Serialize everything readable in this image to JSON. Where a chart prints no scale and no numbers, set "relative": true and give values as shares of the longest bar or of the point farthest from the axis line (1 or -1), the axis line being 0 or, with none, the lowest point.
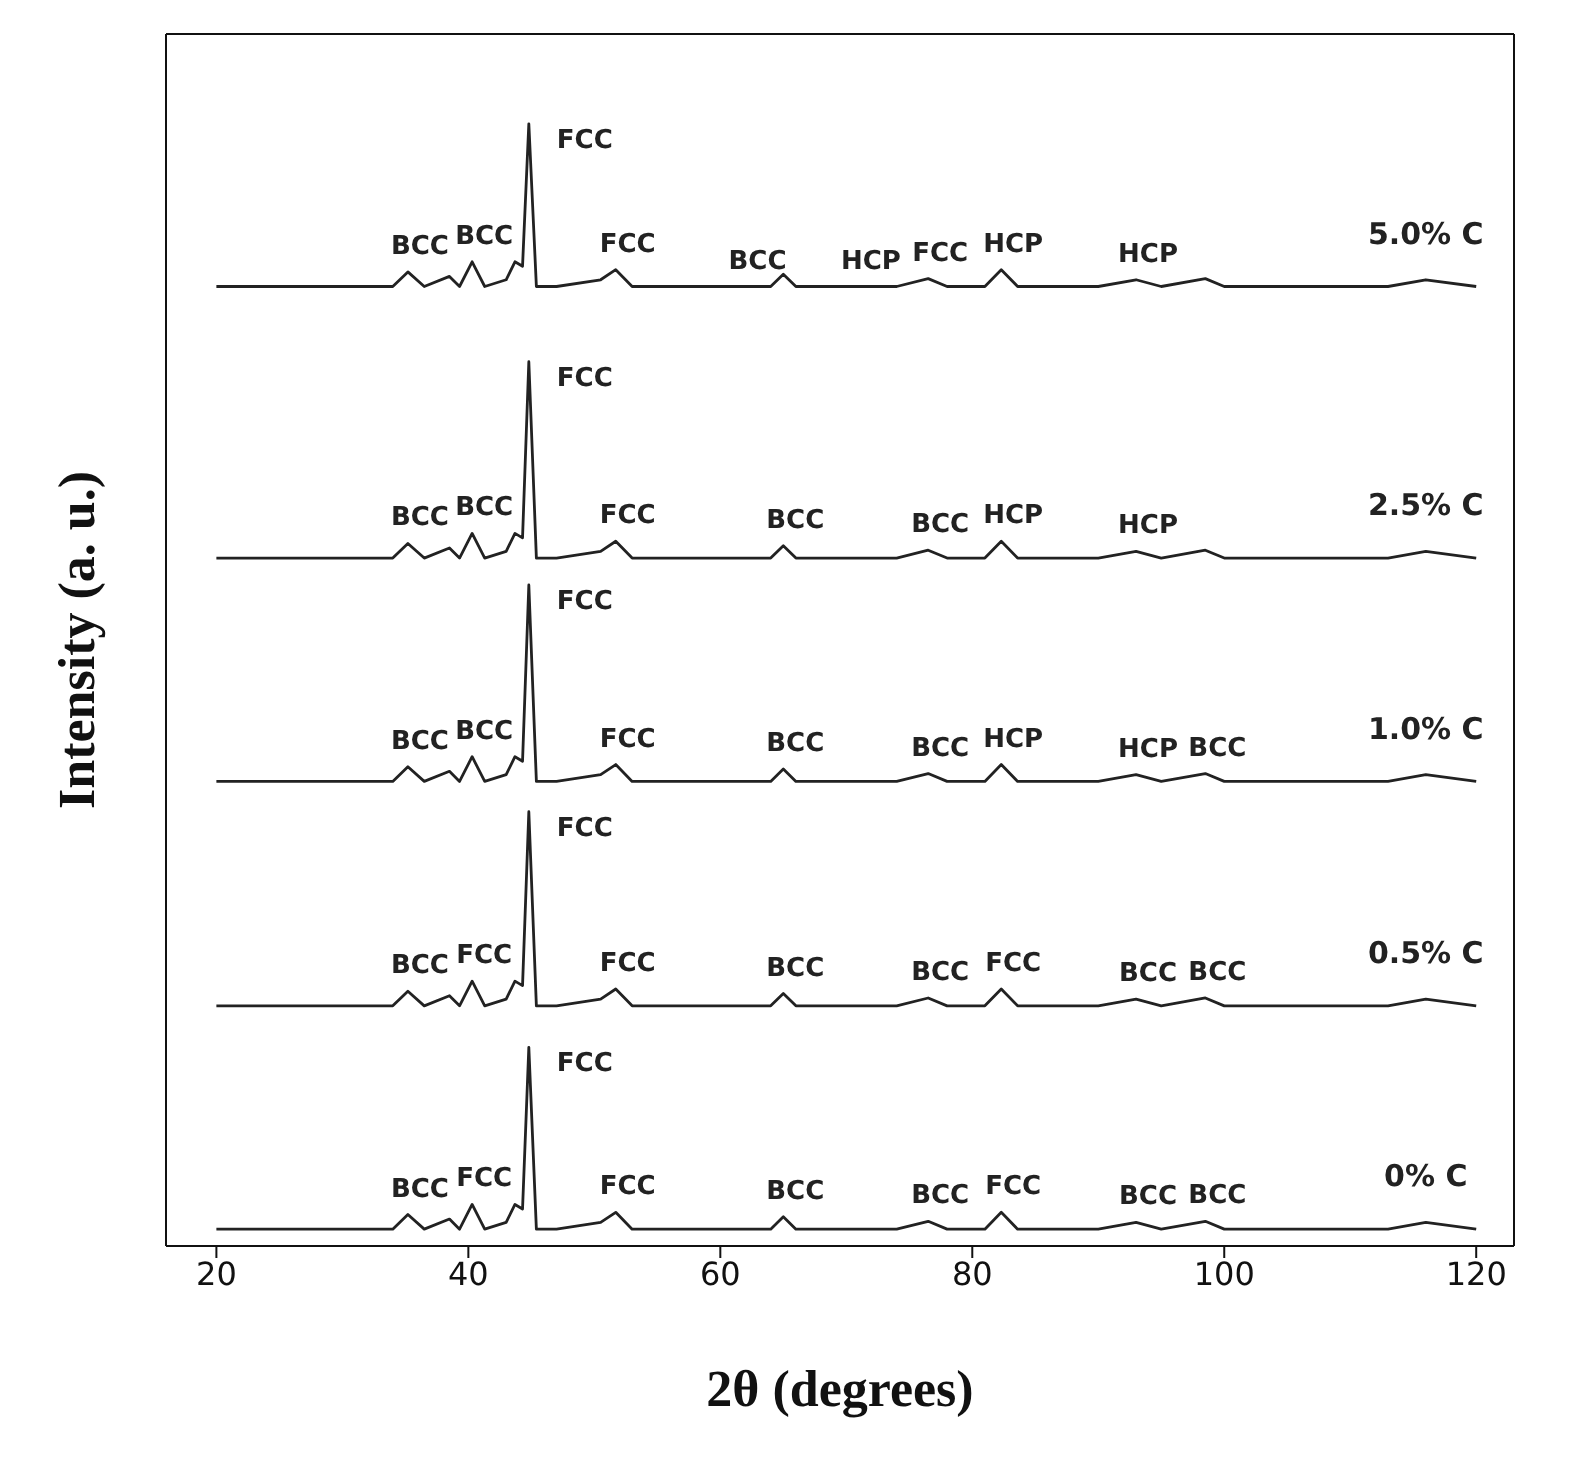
{
  "chart_data": {
    "type": "line",
    "relative": true,
    "xlabel": "2θ (degrees)",
    "ylabel": "Intensity (a. u.)",
    "xlim": [
      16,
      123
    ],
    "xticks": [
      20,
      40,
      60,
      80,
      100,
      120
    ],
    "grid": false,
    "legend": false,
    "marker": "none",
    "line_style": "solid",
    "x": [
      20,
      30,
      34,
      35.2,
      36.5,
      38.5,
      39.3,
      40.3,
      41.3,
      43,
      43.7,
      44.3,
      44.8,
      45.4,
      47,
      50.5,
      51.7,
      53,
      64,
      65,
      66,
      74,
      76.5,
      78,
      81,
      82.3,
      83.6,
      90,
      93,
      95,
      98.5,
      100,
      113,
      116,
      120
    ],
    "series": [
      {
        "name": "5.0% C",
        "color": "#222222",
        "values": [
          0.855,
          0.855,
          0.855,
          0.868,
          0.855,
          0.864,
          0.855,
          0.877,
          0.855,
          0.861,
          0.877,
          0.873,
          1,
          0.855,
          0.855,
          0.861,
          0.87,
          0.855,
          0.855,
          0.866,
          0.855,
          0.855,
          0.862,
          0.855,
          0.855,
          0.87,
          0.855,
          0.855,
          0.861,
          0.855,
          0.862,
          0.855,
          0.855,
          0.861,
          0.855
        ]
      },
      {
        "name": "2.5% C",
        "color": "#222222",
        "values": [
          0.613,
          0.613,
          0.613,
          0.626,
          0.613,
          0.622,
          0.613,
          0.635,
          0.613,
          0.619,
          0.635,
          0.631,
          0.788,
          0.613,
          0.613,
          0.619,
          0.628,
          0.613,
          0.613,
          0.624,
          0.613,
          0.613,
          0.62,
          0.613,
          0.613,
          0.628,
          0.613,
          0.613,
          0.619,
          0.613,
          0.62,
          0.613,
          0.613,
          0.619,
          0.613
        ]
      },
      {
        "name": "1.0% C",
        "color": "#222222",
        "values": [
          0.414,
          0.414,
          0.414,
          0.427,
          0.414,
          0.423,
          0.414,
          0.436,
          0.414,
          0.42,
          0.436,
          0.432,
          0.589,
          0.414,
          0.414,
          0.42,
          0.429,
          0.414,
          0.414,
          0.425,
          0.414,
          0.414,
          0.421,
          0.414,
          0.414,
          0.429,
          0.414,
          0.414,
          0.42,
          0.414,
          0.421,
          0.414,
          0.414,
          0.42,
          0.414
        ]
      },
      {
        "name": "0.5% C",
        "color": "#222222",
        "values": [
          0.214,
          0.214,
          0.214,
          0.227,
          0.214,
          0.223,
          0.214,
          0.236,
          0.214,
          0.22,
          0.236,
          0.232,
          0.387,
          0.214,
          0.214,
          0.22,
          0.229,
          0.214,
          0.214,
          0.225,
          0.214,
          0.214,
          0.221,
          0.214,
          0.214,
          0.229,
          0.214,
          0.214,
          0.22,
          0.214,
          0.221,
          0.214,
          0.214,
          0.22,
          0.214
        ]
      },
      {
        "name": "0% C",
        "color": "#222222",
        "values": [
          0.015,
          0.015,
          0.015,
          0.028,
          0.015,
          0.024,
          0.015,
          0.037,
          0.015,
          0.021,
          0.037,
          0.033,
          0.177,
          0.015,
          0.015,
          0.021,
          0.03,
          0.015,
          0.015,
          0.026,
          0.015,
          0.015,
          0.022,
          0.015,
          0.015,
          0.03,
          0.015,
          0.015,
          0.021,
          0.015,
          0.022,
          0.015,
          0.015,
          0.021,
          0.015
        ]
      }
    ],
    "annotations": [
      {
        "text": "BCC",
        "x": 35.2,
        "y": 0.868
      },
      {
        "text": "BCC",
        "x": 40.3,
        "y": 0.877
      },
      {
        "text": "FCC",
        "x": 44.8,
        "y": 1
      },
      {
        "text": "FCC",
        "x": 51.7,
        "y": 0.87
      },
      {
        "text": "BCC",
        "x": 62,
        "y": 0.855
      },
      {
        "text": "HCP",
        "x": 71,
        "y": 0.855
      },
      {
        "text": "FCC",
        "x": 76.5,
        "y": 0.862
      },
      {
        "text": "HCP",
        "x": 82.3,
        "y": 0.87
      },
      {
        "text": "HCP",
        "x": 93,
        "y": 0.861
      },
      {
        "text": "BCC",
        "x": 35.2,
        "y": 0.626
      },
      {
        "text": "BCC",
        "x": 40.3,
        "y": 0.635
      },
      {
        "text": "FCC",
        "x": 44.8,
        "y": 0.788
      },
      {
        "text": "FCC",
        "x": 51.7,
        "y": 0.628
      },
      {
        "text": "BCC",
        "x": 65,
        "y": 0.624
      },
      {
        "text": "BCC",
        "x": 76.5,
        "y": 0.62
      },
      {
        "text": "HCP",
        "x": 82.3,
        "y": 0.628
      },
      {
        "text": "HCP",
        "x": 93,
        "y": 0.619
      },
      {
        "text": "BCC",
        "x": 35.2,
        "y": 0.427
      },
      {
        "text": "BCC",
        "x": 40.3,
        "y": 0.436
      },
      {
        "text": "FCC",
        "x": 44.8,
        "y": 0.589
      },
      {
        "text": "FCC",
        "x": 51.7,
        "y": 0.429
      },
      {
        "text": "BCC",
        "x": 65,
        "y": 0.425
      },
      {
        "text": "BCC",
        "x": 76.5,
        "y": 0.421
      },
      {
        "text": "HCP",
        "x": 82.3,
        "y": 0.429
      },
      {
        "text": "HCP",
        "x": 93,
        "y": 0.42
      },
      {
        "text": "BCC",
        "x": 98.5,
        "y": 0.421
      },
      {
        "text": "BCC",
        "x": 35.2,
        "y": 0.227
      },
      {
        "text": "FCC",
        "x": 40.3,
        "y": 0.236
      },
      {
        "text": "FCC",
        "x": 44.8,
        "y": 0.387
      },
      {
        "text": "FCC",
        "x": 51.7,
        "y": 0.229
      },
      {
        "text": "BCC",
        "x": 65,
        "y": 0.225
      },
      {
        "text": "BCC",
        "x": 76.5,
        "y": 0.221
      },
      {
        "text": "FCC",
        "x": 82.3,
        "y": 0.229
      },
      {
        "text": "BCC",
        "x": 93,
        "y": 0.22
      },
      {
        "text": "BCC",
        "x": 98.5,
        "y": 0.221
      },
      {
        "text": "BCC",
        "x": 35.2,
        "y": 0.028
      },
      {
        "text": "FCC",
        "x": 40.3,
        "y": 0.037
      },
      {
        "text": "FCC",
        "x": 44.8,
        "y": 0.177
      },
      {
        "text": "FCC",
        "x": 51.7,
        "y": 0.03
      },
      {
        "text": "BCC",
        "x": 65,
        "y": 0.026
      },
      {
        "text": "BCC",
        "x": 76.5,
        "y": 0.022
      },
      {
        "text": "FCC",
        "x": 82.3,
        "y": 0.03
      },
      {
        "text": "BCC",
        "x": 93,
        "y": 0.021
      },
      {
        "text": "BCC",
        "x": 98.5,
        "y": 0.022
      }
    ]
  }
}
